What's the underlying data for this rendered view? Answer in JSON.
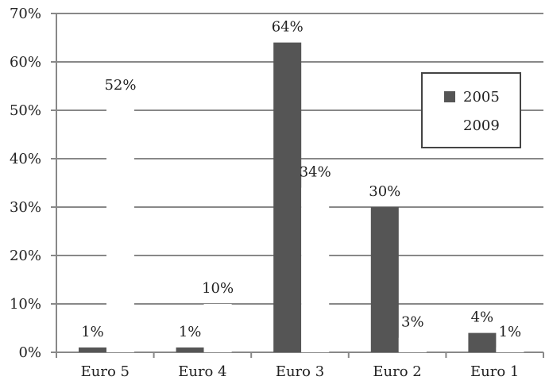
{
  "chart_data": {
    "type": "bar",
    "categories": [
      "Euro 5",
      "Euro 4",
      "Euro 3",
      "Euro 2",
      "Euro 1"
    ],
    "series": [
      {
        "name": "2005",
        "values": [
          1,
          1,
          64,
          30,
          4
        ],
        "labels": [
          "1%",
          "1%",
          "64%",
          "30%",
          "4%"
        ],
        "color": "#555555"
      },
      {
        "name": "2009",
        "values": [
          52,
          10,
          34,
          3,
          1
        ],
        "labels": [
          "52%",
          "10%",
          "34%",
          "3%",
          "1%"
        ],
        "color": "#ffffff"
      }
    ],
    "yticks": [
      "0%",
      "10%",
      "20%",
      "30%",
      "40%",
      "50%",
      "60%",
      "70%"
    ],
    "ylim": [
      0,
      70
    ],
    "grid": true,
    "legend_position": "right",
    "title": "",
    "xlabel": "",
    "ylabel": ""
  }
}
